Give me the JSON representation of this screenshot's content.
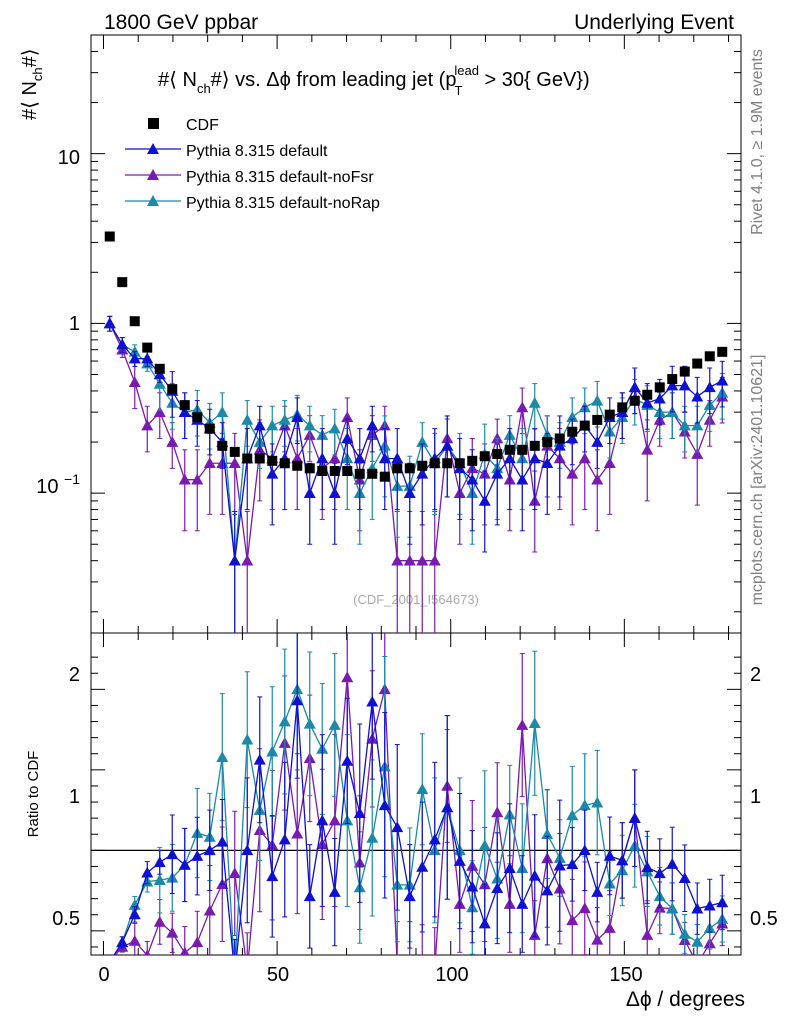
{
  "header": {
    "left": "1800 GeV ppbar",
    "right": "Underlying Event"
  },
  "side_labels": {
    "rivet": "Rivet 4.1.0, ≥ 1.9M events",
    "mcplots": "mcplots.cern.ch [arXiv:2401.10621]"
  },
  "watermark": "(CDF_2001_I564673)",
  "colors": {
    "cdf": "#000000",
    "default": "#1010d0",
    "noFsr": "#7a1ab0",
    "noRap": "#1a8aa8"
  },
  "chart_data": {
    "type": "scatter",
    "title": "#⟨ N_ch#⟩ vs. Δϕ from leading jet (p_T^lead > 30{ GeV})",
    "title_parts": {
      "a": "#⟨ N",
      "a_sub": "ch",
      "b": "#⟩ vs. Δϕ from leading jet  (p",
      "b_sup": "lead",
      "b_sub": "T",
      "c": " > 30{ GeV})"
    },
    "ylabel_parts": {
      "a": "#⟨ N",
      "sub": "ch",
      "b": "#⟩"
    },
    "xlabel": "Δϕ / degrees",
    "ratio_ylabel": "Ratio to CDF",
    "xlim": [
      -3.6,
      183.6
    ],
    "ylim": [
      0.015,
      50
    ],
    "ratio_ylim": [
      0.35,
      2.35
    ],
    "x_ticks": [
      "0",
      "50",
      "100",
      "150"
    ],
    "y_ticks": [
      "10",
      "1",
      "10^−1"
    ],
    "ratio_ticks": [
      "2",
      "1",
      "0.5"
    ],
    "legend": [
      "CDF",
      "Pythia 8.315 default",
      "Pythia 8.315 default-noFsr",
      "Pythia 8.315 default-noRap"
    ],
    "x": [
      1.8,
      5.4,
      9,
      12.6,
      16.2,
      19.8,
      23.4,
      27,
      30.6,
      34.2,
      37.8,
      41.4,
      45,
      48.6,
      52.2,
      55.8,
      59.4,
      63,
      66.6,
      70.2,
      73.8,
      77.4,
      81,
      84.6,
      88.2,
      91.8,
      95.4,
      99,
      102.6,
      106.2,
      109.8,
      113.4,
      117,
      120.6,
      124.2,
      127.8,
      131.4,
      135,
      138.6,
      142.2,
      145.8,
      149.4,
      153,
      156.6,
      160.2,
      163.8,
      167.4,
      171,
      174.6,
      178.2
    ],
    "series": [
      {
        "name": "CDF",
        "values": [
          3.25,
          1.75,
          1.03,
          0.72,
          0.54,
          0.41,
          0.33,
          0.28,
          0.24,
          0.19,
          0.175,
          0.16,
          0.16,
          0.155,
          0.15,
          0.145,
          0.14,
          0.135,
          0.135,
          0.135,
          0.13,
          0.13,
          0.125,
          0.14,
          0.14,
          0.145,
          0.15,
          0.15,
          0.15,
          0.155,
          0.165,
          0.17,
          0.18,
          0.18,
          0.19,
          0.2,
          0.21,
          0.23,
          0.25,
          0.27,
          0.29,
          0.32,
          0.35,
          0.38,
          0.42,
          0.47,
          0.52,
          0.58,
          0.64,
          0.68
        ]
      },
      {
        "name": "Pythia 8.315 default",
        "values": [
          1,
          0.75,
          0.62,
          0.62,
          0.5,
          0.4,
          0.3,
          0.27,
          0.24,
          0.2,
          0.04,
          0.16,
          0.25,
          0.13,
          0.16,
          0.28,
          0.1,
          0.16,
          0.1,
          0.21,
          0.16,
          0.25,
          0.16,
          0.16,
          0.1,
          0.13,
          0.16,
          0.19,
          0.14,
          0.12,
          0.09,
          0.13,
          0.16,
          0.12,
          0.16,
          0.15,
          0.19,
          0.21,
          0.25,
          0.2,
          0.28,
          0.3,
          0.42,
          0.34,
          0.36,
          0.43,
          0.43,
          0.37,
          0.42,
          0.46
        ]
      },
      {
        "name": "Pythia 8.315 default-noFsr",
        "values": [
          1,
          0.7,
          0.45,
          0.25,
          0.3,
          0.2,
          0.12,
          0.12,
          0.15,
          0.15,
          0.15,
          0.04,
          0.18,
          0.16,
          0.25,
          0.16,
          0.22,
          0.14,
          0.16,
          0.28,
          0.12,
          0.22,
          0.25,
          0.04,
          0.04,
          0.04,
          0.04,
          0.21,
          0.1,
          0.14,
          0.13,
          0.21,
          0.12,
          0.32,
          0.09,
          0.19,
          0.16,
          0.13,
          0.16,
          0.12,
          0.15,
          0.3,
          0.42,
          0.18,
          0.27,
          0.3,
          0.23,
          0.17,
          0.27,
          0.37
        ]
      },
      {
        "name": "Pythia 8.315 default-noRap",
        "values": [
          1,
          0.75,
          0.68,
          0.58,
          0.44,
          0.34,
          0.3,
          0.31,
          0.26,
          0.3,
          0.04,
          0.27,
          0.2,
          0.25,
          0.27,
          0.29,
          0.25,
          0.22,
          0.24,
          0.16,
          0.1,
          0.14,
          0.19,
          0.11,
          0.11,
          0.2,
          0.15,
          0.19,
          0.15,
          0.1,
          0.17,
          0.14,
          0.22,
          0.16,
          0.34,
          0.22,
          0.2,
          0.28,
          0.32,
          0.35,
          0.23,
          0.28,
          0.36,
          0.33,
          0.3,
          0.3,
          0.25,
          0.25,
          0.33,
          0.39
        ]
      }
    ]
  }
}
